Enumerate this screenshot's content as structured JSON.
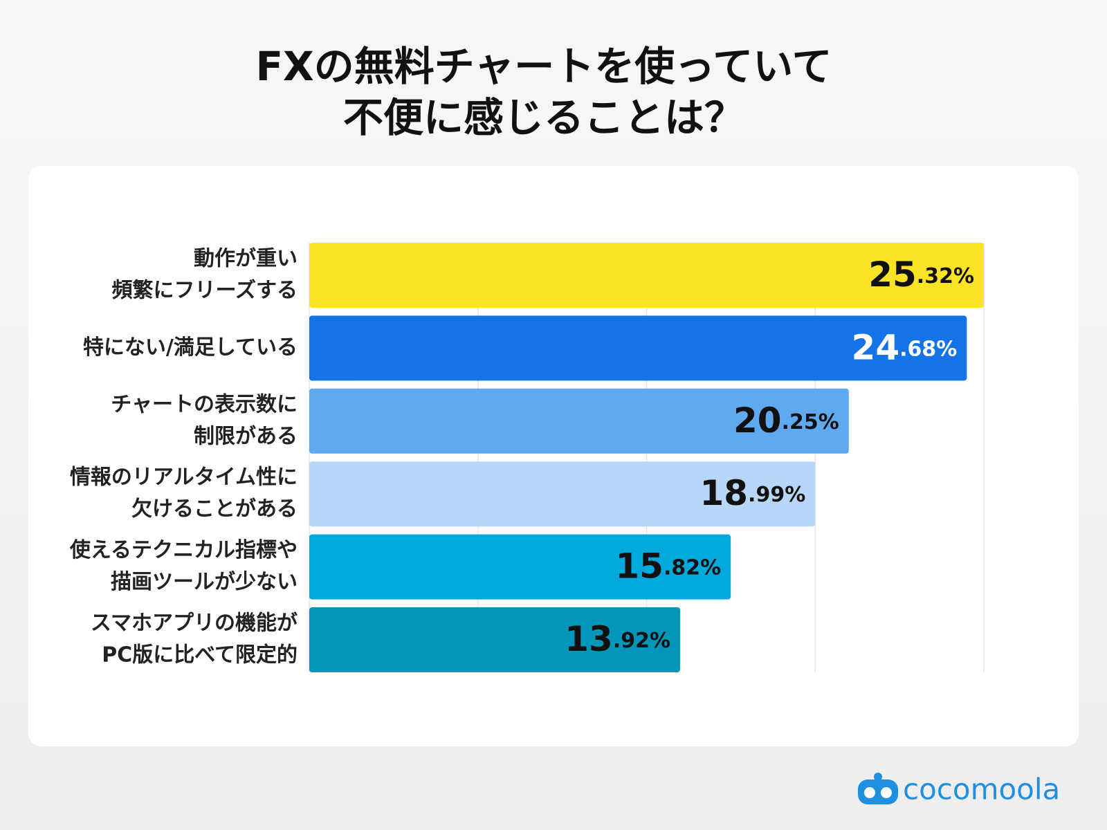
{
  "chart_data": {
    "type": "barh",
    "title": [
      "FXの無料チャートを使っていて",
      "不便に感じることは？"
    ],
    "categories": [
      [
        "動作が重い",
        "頻繁にフリーズする"
      ],
      [
        "特にない/満足している"
      ],
      [
        "チャートの表示数に",
        "制限がある"
      ],
      [
        "情報のリアルタイム性に",
        "欠けることがある"
      ],
      [
        "使えるテクニカル指標や",
        "描画ツールが少ない"
      ],
      [
        "スマホアプリの機能が",
        "PC版に比べて限定的"
      ]
    ],
    "values": [
      25.32,
      24.68,
      20.25,
      18.99,
      15.82,
      13.92
    ],
    "value_labels": [
      "25.32%",
      "24.68%",
      "20.25%",
      "18.99%",
      "15.82%",
      "13.92%"
    ],
    "colors": [
      "#fde325",
      "#1473e6",
      "#5ea9f0",
      "#b8d7f8",
      "#00a9dc",
      "#0396b8"
    ],
    "label_colors": [
      "#111111",
      "#ffffff",
      "#111111",
      "#111111",
      "#111111",
      "#111111"
    ],
    "xlim": [
      0,
      25.32
    ],
    "xticks": [
      0,
      6.33,
      12.66,
      18.99,
      25.32
    ],
    "grid": true
  },
  "brand": "cocomoola"
}
